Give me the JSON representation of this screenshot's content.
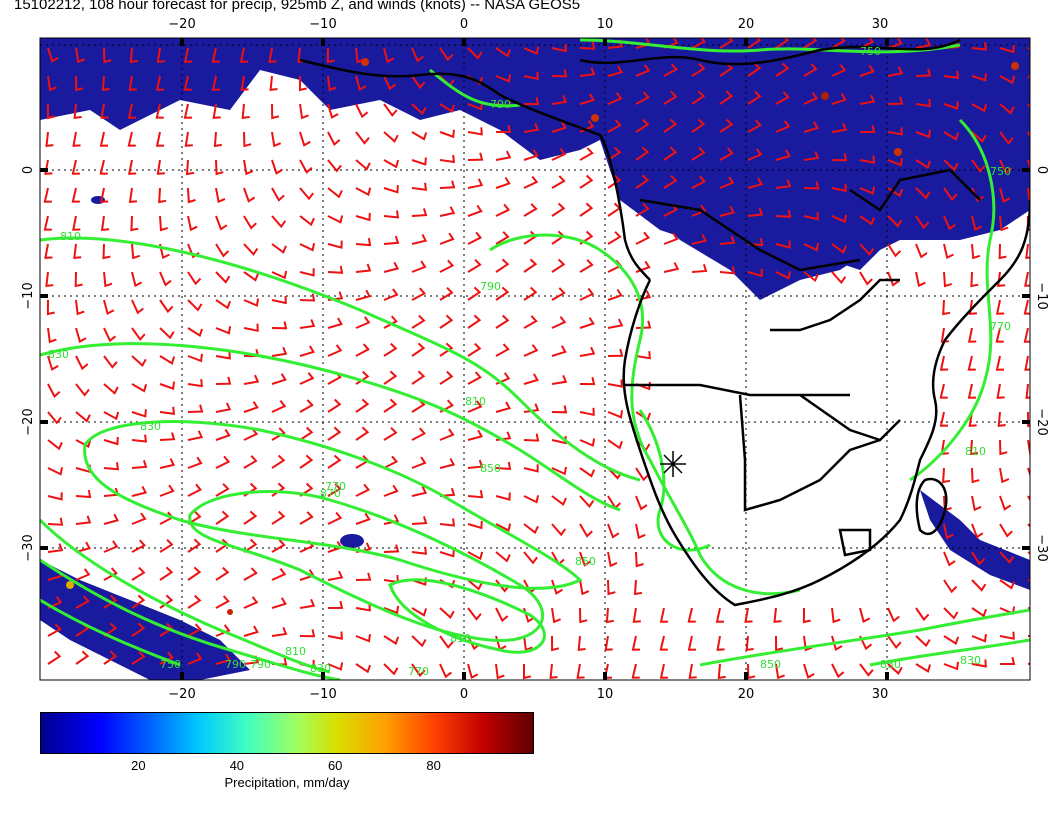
{
  "title": "15102212, 108 hour forecast for precip, 925mb Z, and winds (knots) -- NASA GEOS5",
  "map": {
    "lon_range": [
      -30,
      40
    ],
    "lat_range": [
      -40,
      10
    ],
    "lon_ticks": [
      "−20",
      "−10",
      "0",
      "10",
      "20",
      "30"
    ],
    "lat_ticks": [
      "0",
      "−10",
      "−20",
      "−30"
    ],
    "contour_labels": [
      "750",
      "790",
      "750",
      "810",
      "790",
      "830",
      "810",
      "830",
      "850",
      "870",
      "850",
      "830",
      "810",
      "790",
      "770",
      "810",
      "770",
      "830",
      "850",
      "830",
      "810",
      "790",
      "770",
      "750"
    ],
    "colors": {
      "precip_fill": "#1a1a9e",
      "contour": "#33ee33",
      "wind_barb": "#ee1111",
      "coastline": "#000000"
    },
    "marker": "station-cross"
  },
  "colorbar": {
    "ticks": [
      "20",
      "40",
      "60",
      "80"
    ],
    "tick_values": [
      20,
      40,
      60,
      80
    ],
    "range": [
      0,
      100
    ],
    "label": "Precipitation, mm/day"
  }
}
